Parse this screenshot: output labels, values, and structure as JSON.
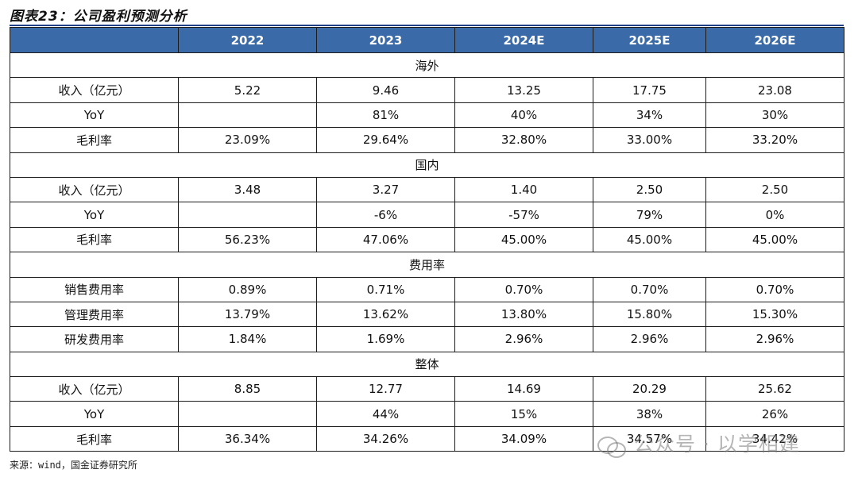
{
  "title": "图表23：公司盈利预测分析",
  "columns": [
    "",
    "2022",
    "2023",
    "2024E",
    "2025E",
    "2026E"
  ],
  "sections": [
    {
      "name": "海外",
      "rows": [
        {
          "label": "收入（亿元）",
          "values": [
            "5.22",
            "9.46",
            "13.25",
            "17.75",
            "23.08"
          ]
        },
        {
          "label": "YoY",
          "values": [
            "",
            "81%",
            "40%",
            "34%",
            "30%"
          ]
        },
        {
          "label": "毛利率",
          "values": [
            "23.09%",
            "29.64%",
            "32.80%",
            "33.00%",
            "33.20%"
          ]
        }
      ]
    },
    {
      "name": "国内",
      "rows": [
        {
          "label": "收入（亿元）",
          "values": [
            "3.48",
            "3.27",
            "1.40",
            "2.50",
            "2.50"
          ]
        },
        {
          "label": "YoY",
          "values": [
            "",
            "-6%",
            "-57%",
            "79%",
            "0%"
          ]
        },
        {
          "label": "毛利率",
          "values": [
            "56.23%",
            "47.06%",
            "45.00%",
            "45.00%",
            "45.00%"
          ]
        }
      ]
    },
    {
      "name": "费用率",
      "rows": [
        {
          "label": "销售费用率",
          "values": [
            "0.89%",
            "0.71%",
            "0.70%",
            "0.70%",
            "0.70%"
          ]
        },
        {
          "label": "管理费用率",
          "values": [
            "13.79%",
            "13.62%",
            "13.80%",
            "15.80%",
            "15.30%"
          ]
        },
        {
          "label": "研发费用率",
          "values": [
            "1.84%",
            "1.69%",
            "2.96%",
            "2.96%",
            "2.96%"
          ]
        }
      ]
    },
    {
      "name": "整体",
      "rows": [
        {
          "label": "收入（亿元）",
          "values": [
            "8.85",
            "12.77",
            "14.69",
            "20.29",
            "25.62"
          ]
        },
        {
          "label": "YoY",
          "values": [
            "",
            "44%",
            "15%",
            "38%",
            "26%"
          ]
        },
        {
          "label": "毛利率",
          "values": [
            "36.34%",
            "34.26%",
            "34.09%",
            "34.57%",
            "34.42%"
          ]
        }
      ]
    }
  ],
  "source": "来源：wind，国金证券研究所",
  "watermark": "公众号 · 以学相建",
  "colors": {
    "header_bg": "#3a6aa8",
    "header_text": "#ffffff",
    "rule": "#1f3f86"
  }
}
